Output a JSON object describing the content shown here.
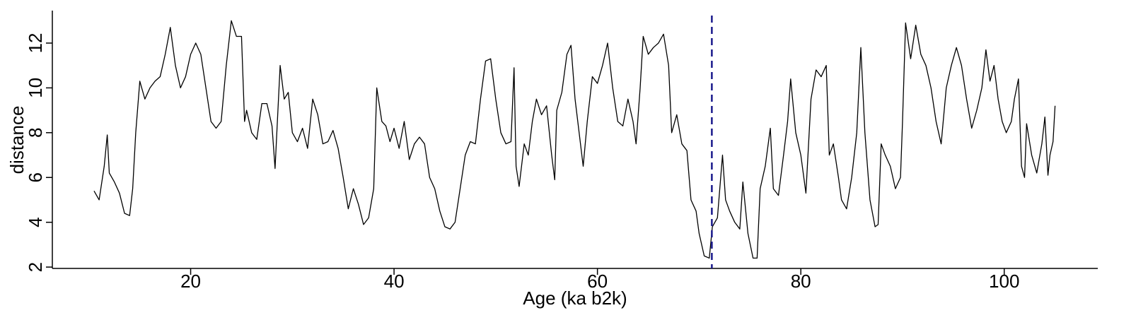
{
  "chart_data": {
    "type": "line",
    "xlabel": "Age (ka b2k)",
    "ylabel": "distance",
    "xlim": [
      6.4,
      109.2
    ],
    "ylim": [
      1.94,
      13.45
    ],
    "xticks": [
      20,
      40,
      60,
      80,
      100
    ],
    "yticks": [
      2,
      4,
      6,
      8,
      10,
      12
    ],
    "grid": false,
    "reference_line": {
      "x": 71.25,
      "color": "#1a1a8c",
      "style": "dashed"
    },
    "x": [
      10.5,
      11,
      11.5,
      11.8,
      12,
      12.5,
      13,
      13.5,
      14,
      14.3,
      14.6,
      15,
      15.5,
      16,
      16.5,
      17,
      17.5,
      18,
      18.5,
      19,
      19.5,
      20,
      20.5,
      21,
      21.5,
      22,
      22.5,
      23,
      23.5,
      24,
      24.5,
      25,
      25.3,
      25.5,
      26,
      26.5,
      27,
      27.5,
      28,
      28.3,
      28.8,
      29.2,
      29.6,
      30,
      30.5,
      31,
      31.5,
      32,
      32.5,
      33,
      33.5,
      34,
      34.5,
      35,
      35.5,
      36,
      36.5,
      37,
      37.5,
      38,
      38.3,
      38.8,
      39.2,
      39.6,
      40,
      40.5,
      41,
      41.5,
      42,
      42.5,
      43,
      43.5,
      44,
      44.5,
      45,
      45.5,
      46,
      46.5,
      47,
      47.5,
      48,
      48.5,
      49,
      49.5,
      50,
      50.5,
      51,
      51.5,
      51.8,
      52,
      52.3,
      52.8,
      53.2,
      53.6,
      54,
      54.5,
      55,
      55.5,
      55.8,
      56,
      56.5,
      57,
      57.4,
      57.8,
      58.2,
      58.6,
      59,
      59.5,
      60,
      60.5,
      61,
      61.5,
      62,
      62.5,
      63,
      63.5,
      63.8,
      64.2,
      64.5,
      65,
      65.5,
      66,
      66.5,
      67,
      67.3,
      67.8,
      68.3,
      68.8,
      69.2,
      69.7,
      70,
      70.5,
      71,
      71.3,
      71.8,
      72.3,
      72.6,
      73,
      73.5,
      74,
      74.3,
      74.8,
      75.3,
      75.7,
      76,
      76.5,
      77,
      77.3,
      77.8,
      78.3,
      78.7,
      79,
      79.5,
      80,
      80.5,
      81,
      81.5,
      82,
      82.5,
      82.8,
      83.2,
      83.7,
      84,
      84.5,
      85,
      85.5,
      85.9,
      86.3,
      86.8,
      87.3,
      87.6,
      87.9,
      88.3,
      88.8,
      89.3,
      89.8,
      90,
      90.3,
      90.8,
      91.3,
      91.8,
      92.3,
      92.8,
      93.3,
      93.8,
      94.3,
      94.8,
      95.3,
      95.8,
      96.3,
      96.8,
      97.3,
      97.8,
      98.2,
      98.6,
      99,
      99.4,
      99.8,
      100.2,
      100.7,
      101,
      101.4,
      101.7,
      102,
      102.2,
      102.7,
      103.2,
      103.7,
      104,
      104.3,
      104.5,
      104.8,
      105
    ],
    "series": [
      {
        "name": "distance",
        "color": "#000000",
        "values": [
          5.4,
          5.0,
          6.5,
          7.9,
          6.2,
          5.8,
          5.3,
          4.4,
          4.3,
          5.5,
          8,
          10.3,
          9.5,
          10,
          10.3,
          10.5,
          11.5,
          12.7,
          11,
          10,
          10.5,
          11.5,
          12,
          11.5,
          10,
          8.5,
          8.2,
          8.5,
          11,
          13,
          12.3,
          12.3,
          8.5,
          9,
          8,
          7.7,
          9.3,
          9.3,
          8.3,
          6.4,
          11,
          9.5,
          9.8,
          8,
          7.6,
          8.2,
          7.3,
          9.5,
          8.8,
          7.5,
          7.6,
          8.1,
          7.3,
          6,
          4.6,
          5.5,
          4.8,
          3.9,
          4.2,
          5.5,
          10,
          8.5,
          8.3,
          7.6,
          8.2,
          7.3,
          8.5,
          6.8,
          7.5,
          7.8,
          7.5,
          6,
          5.5,
          4.5,
          3.8,
          3.7,
          4,
          5.5,
          7,
          7.6,
          7.5,
          9.5,
          11.2,
          11.3,
          9.5,
          8,
          7.5,
          7.6,
          10.9,
          6.5,
          5.6,
          7.5,
          7,
          8.5,
          9.5,
          8.8,
          9.2,
          7,
          5.9,
          9,
          9.8,
          11.5,
          11.9,
          9.5,
          8,
          6.5,
          8.5,
          10.5,
          10.2,
          11,
          12,
          10,
          8.5,
          8.3,
          9.5,
          8.5,
          7.5,
          10,
          12.3,
          11.5,
          11.8,
          12,
          12.4,
          11,
          8,
          8.8,
          7.5,
          7.2,
          5,
          4.5,
          3.5,
          2.5,
          2.4,
          3.8,
          4.2,
          7,
          5,
          4.5,
          4,
          3.7,
          5.8,
          3.5,
          2.4,
          2.4,
          5.5,
          6.5,
          8.2,
          5.5,
          5.2,
          7,
          8.5,
          10.4,
          8,
          7,
          5.3,
          9.5,
          10.8,
          10.5,
          11,
          7,
          7.5,
          6,
          5,
          4.6,
          6,
          8,
          11.8,
          8,
          5,
          3.8,
          3.9,
          7.5,
          7,
          6.5,
          5.5,
          6,
          8.5,
          12.9,
          11.3,
          12.8,
          11.5,
          11,
          10,
          8.5,
          7.5,
          10,
          11,
          11.8,
          11,
          9.5,
          8.2,
          9,
          10,
          11.7,
          10.3,
          11,
          9.5,
          8.5,
          8,
          8.5,
          9.5,
          10.4,
          6.5,
          6,
          8.4,
          7,
          6.2,
          7.5,
          8.7,
          6.1,
          7,
          7.6,
          9.2
        ]
      }
    ]
  }
}
